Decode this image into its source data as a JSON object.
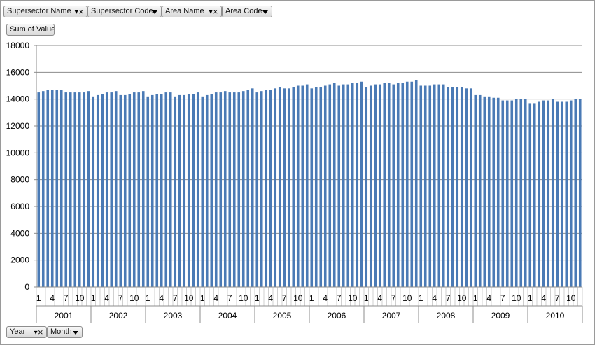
{
  "filters": {
    "top": [
      {
        "label": "Supersector Name",
        "icon": "filter-dropdown-icon"
      },
      {
        "label": "Supersector Code",
        "icon": "chevron-down-icon"
      },
      {
        "label": "Area Name",
        "icon": "filter-dropdown-icon"
      },
      {
        "label": "Area Code",
        "icon": "chevron-down-icon"
      }
    ],
    "values": {
      "label": "Sum of Value"
    },
    "axis": [
      {
        "label": "Year",
        "icon": "filter-dropdown-icon"
      },
      {
        "label": "Month",
        "icon": "chevron-down-icon"
      }
    ]
  },
  "chart_data": {
    "type": "bar",
    "title": "",
    "xlabel": "",
    "ylabel": "",
    "ylim": [
      0,
      18000
    ],
    "yticks": [
      0,
      2000,
      4000,
      6000,
      8000,
      10000,
      12000,
      14000,
      16000,
      18000
    ],
    "grid": true,
    "legend": "none",
    "bar_color": "#4a7ab5",
    "years": [
      "2001",
      "2002",
      "2003",
      "2004",
      "2005",
      "2006",
      "2007",
      "2008",
      "2009",
      "2010"
    ],
    "month_labels": [
      "1",
      "4",
      "7",
      "10"
    ],
    "series": [
      {
        "values": [
          14500,
          14600,
          14700,
          14700,
          14700,
          14700,
          14500,
          14500,
          14500,
          14500,
          14500,
          14600,
          14200,
          14300,
          14400,
          14500,
          14500,
          14600,
          14300,
          14300,
          14400,
          14500,
          14500,
          14600,
          14200,
          14300,
          14400,
          14400,
          14500,
          14500,
          14200,
          14300,
          14300,
          14400,
          14400,
          14500,
          14200,
          14300,
          14400,
          14500,
          14500,
          14600,
          14500,
          14500,
          14500,
          14600,
          14700,
          14800,
          14500,
          14600,
          14700,
          14700,
          14800,
          14900,
          14800,
          14800,
          14900,
          15000,
          15000,
          15100,
          14800,
          14900,
          14900,
          15000,
          15100,
          15200,
          15000,
          15100,
          15100,
          15200,
          15200,
          15300,
          14900,
          15000,
          15100,
          15100,
          15200,
          15200,
          15100,
          15200,
          15200,
          15300,
          15300,
          15400,
          15000,
          15000,
          15000,
          15100,
          15100,
          15100,
          14900,
          14900,
          14900,
          14900,
          14800,
          14800,
          14300,
          14300,
          14200,
          14200,
          14100,
          14100,
          13900,
          13900,
          13900,
          14000,
          14000,
          14000,
          13700,
          13700,
          13800,
          13900,
          13900,
          14000,
          13800,
          13800,
          13800,
          13900,
          14000,
          14000
        ]
      }
    ]
  }
}
